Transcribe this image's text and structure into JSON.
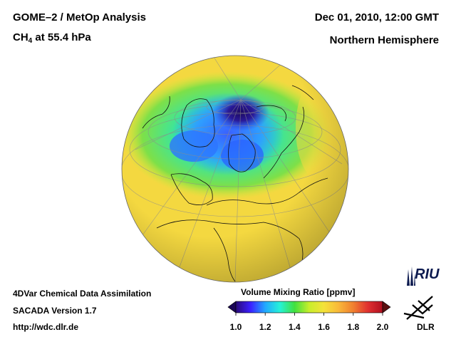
{
  "header": {
    "title": "GOME–2 / MetOp Analysis",
    "species_main": "CH",
    "species_sub": "4",
    "species_rest": " at 55.4 hPa",
    "datetime": "Dec 01, 2010, 12:00 GMT",
    "region": "Northern Hemisphere"
  },
  "footer": {
    "line1": "4DVar Chemical Data Assimilation",
    "line2": "SACADA Version 1.7",
    "line3": "http://wdc.dlr.de"
  },
  "colorbar": {
    "title": "Volume Mixing Ratio [ppmv]",
    "min": 1.0,
    "max": 2.0,
    "tick_labels": [
      "1.0",
      "1.2",
      "1.4",
      "1.6",
      "1.8",
      "2.0"
    ],
    "colors": [
      "#2a0a78",
      "#3a20ff",
      "#22a8ff",
      "#25f2d8",
      "#40e040",
      "#c8ee2c",
      "#f4e23a",
      "#f9b83a",
      "#f08030",
      "#e03030",
      "#b01020"
    ]
  },
  "logos": {
    "riu": "RIU",
    "dlr": "DLR"
  },
  "map": {
    "projection": "orthographic",
    "background_level_ppmv": 1.62,
    "arctic_minimum_ppmv": 1.05,
    "ring_level_ppmv": 1.45
  }
}
